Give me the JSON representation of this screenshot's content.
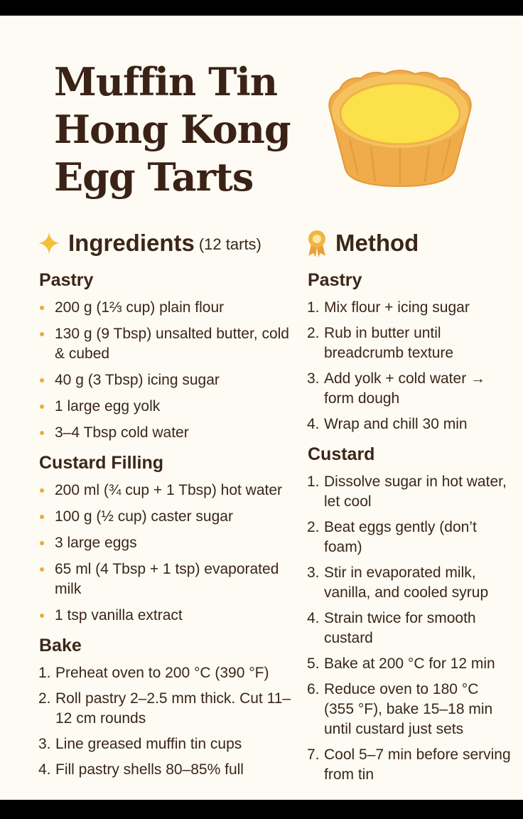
{
  "title_lines": [
    "Muffin Tin",
    "Hong Kong",
    "Egg Tarts"
  ],
  "ingredients": {
    "heading": "Ingredients",
    "note": "(12 tarts)",
    "sections": [
      {
        "title": "Pastry",
        "items": [
          "200 g (1⅔ cup) plain flour",
          "130 g (9 Tbsp) unsalted butter, cold & cubed",
          "40 g (3 Tbsp) icing sugar",
          "1 large egg yolk",
          "3–4 Tbsp cold water"
        ]
      },
      {
        "title": "Custard Filling",
        "items": [
          "200 ml (¾ cup + 1 Tbsp) hot water",
          "100 g (½ cup) caster sugar",
          "3 large eggs",
          "65 ml (4 Tbsp + 1 tsp) evaporated milk",
          "1 tsp vanilla extract"
        ]
      }
    ],
    "bake": {
      "title": "Bake",
      "steps": [
        {
          "number": "1.",
          "text": "Preheat oven to 200 °C (390 °F)"
        },
        {
          "number": "2.",
          "text": "Roll pastry 2–2.5 mm thick. Cut 11–12 cm rounds"
        },
        {
          "number": "3.",
          "text": "Line greased muffin tin cups"
        },
        {
          "number": "4.",
          "text": "Fill pastry shells 80–85% full"
        }
      ]
    }
  },
  "method": {
    "heading": "Method",
    "sections": [
      {
        "title": "Pastry",
        "steps": [
          {
            "number": "1.",
            "text": "Mix flour + icing sugar"
          },
          {
            "number": "2.",
            "text": "Rub in butter until breadcrumb texture"
          },
          {
            "number": "3.",
            "text": "Add yolk + cold water → form dough"
          },
          {
            "number": "4.",
            "text": "Wrap and chill 30 min"
          }
        ]
      },
      {
        "title": "Custard",
        "steps": [
          {
            "number": "1.",
            "text": "Dissolve sugar in hot water, let cool"
          },
          {
            "number": "2.",
            "text": "Beat eggs gently (don’t foam)"
          },
          {
            "number": "3.",
            "text": "Stir in evaporated milk, vanilla, and cooled syrup"
          },
          {
            "number": "4.",
            "text": "Strain twice for smooth custard"
          },
          {
            "number": "5.",
            "text": "Bake at 200 °C for 12 min"
          },
          {
            "number": "6.",
            "text": "Reduce oven to 180 °C (355 °F), bake 15–18 min until custard just sets"
          },
          {
            "number": "7.",
            "text": "Cool 5–7 min before serving from tin"
          }
        ]
      }
    ]
  }
}
